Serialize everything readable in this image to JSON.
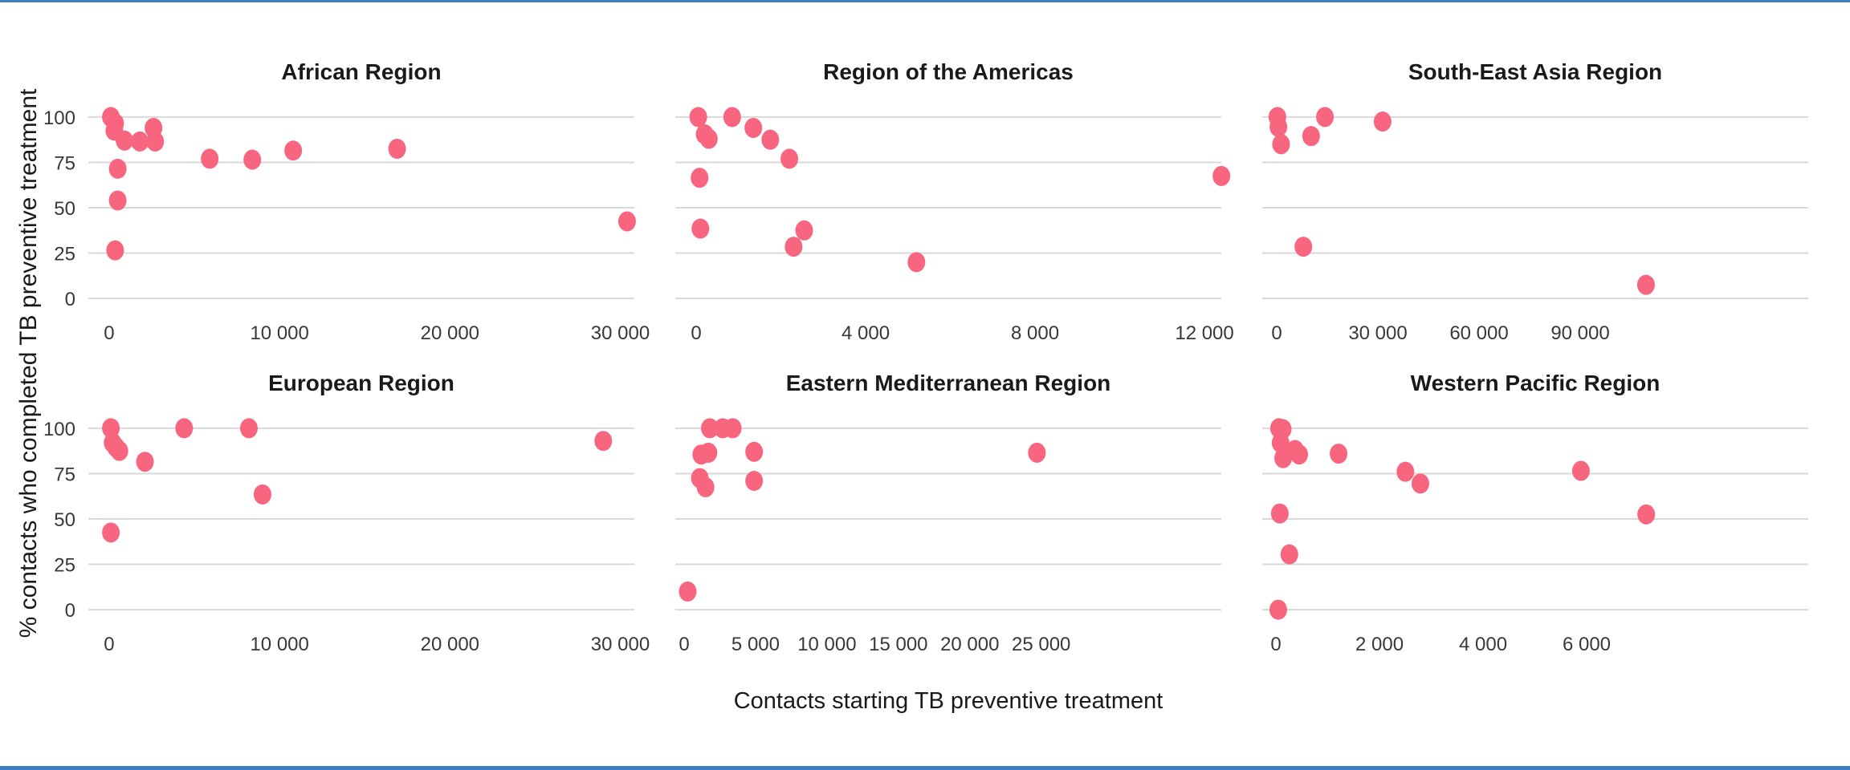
{
  "chart_data": {
    "type": "scatter",
    "faceted": true,
    "xlabel": "Contacts starting TB preventive treatment",
    "ylabel": "% contacts who completed TB preventive treatment",
    "point_color": "#f8657e",
    "gridline_color": "#d9d9d9",
    "grid": "horizontal-only",
    "legend_position": "none",
    "ylim": [
      -5.7,
      105.7
    ],
    "y_ticks": [
      {
        "v": 0,
        "label": "0"
      },
      {
        "v": 25,
        "label": "25"
      },
      {
        "v": 50,
        "label": "50"
      },
      {
        "v": 75,
        "label": "75"
      },
      {
        "v": 100,
        "label": "100"
      }
    ],
    "panels": [
      {
        "title": "African Region",
        "xlim": [
          -1225,
          30825
        ],
        "x_ticks": [
          {
            "v": 0,
            "label": "0"
          },
          {
            "v": 10000,
            "label": "10 000"
          },
          {
            "v": 20000,
            "label": "20 000"
          },
          {
            "v": 30000,
            "label": "30 000"
          }
        ],
        "points": [
          [
            100,
            100
          ],
          [
            350,
            96.5
          ],
          [
            300,
            92.5
          ],
          [
            900,
            87
          ],
          [
            1800,
            86.5
          ],
          [
            2600,
            94
          ],
          [
            2700,
            86.5
          ],
          [
            500,
            71.5
          ],
          [
            500,
            54
          ],
          [
            350,
            26.5
          ],
          [
            5900,
            77
          ],
          [
            8400,
            76.5
          ],
          [
            10800,
            81.5
          ],
          [
            16900,
            82.5
          ],
          [
            30400,
            42.5
          ]
        ]
      },
      {
        "title": "Region of the Americas",
        "xlim": [
          -493,
          12397
        ],
        "x_ticks": [
          {
            "v": 0,
            "label": "0"
          },
          {
            "v": 4000,
            "label": "4 000"
          },
          {
            "v": 8000,
            "label": "8 000"
          },
          {
            "v": 12000,
            "label": "12 000"
          }
        ],
        "points": [
          [
            50,
            100
          ],
          [
            850,
            100
          ],
          [
            1350,
            94
          ],
          [
            1750,
            87.5
          ],
          [
            200,
            90.5
          ],
          [
            300,
            88
          ],
          [
            2200,
            77
          ],
          [
            80,
            66.5
          ],
          [
            100,
            38.5
          ],
          [
            2550,
            37.5
          ],
          [
            2300,
            28.5
          ],
          [
            5200,
            20
          ],
          [
            12400,
            67.5
          ]
        ]
      },
      {
        "title": "South-East Asia Region",
        "xlim": [
          -4290,
          157610
        ],
        "x_ticks": [
          {
            "v": 0,
            "label": "0"
          },
          {
            "v": 30000,
            "label": "30 000"
          },
          {
            "v": 60000,
            "label": "60 000"
          },
          {
            "v": 90000,
            "label": "90 000"
          }
        ],
        "points": [
          [
            200,
            100
          ],
          [
            500,
            94.5
          ],
          [
            1300,
            85
          ],
          [
            10200,
            89.5
          ],
          [
            14300,
            100
          ],
          [
            31400,
            97.5
          ],
          [
            7900,
            28.5
          ],
          [
            109500,
            7.5
          ]
        ]
      },
      {
        "title": "European Region",
        "xlim": [
          -1225,
          30825
        ],
        "x_ticks": [
          {
            "v": 0,
            "label": "0"
          },
          {
            "v": 10000,
            "label": "10 000"
          },
          {
            "v": 20000,
            "label": "20 000"
          },
          {
            "v": 30000,
            "label": "30 000"
          }
        ],
        "points": [
          [
            100,
            100
          ],
          [
            200,
            92
          ],
          [
            400,
            89.5
          ],
          [
            600,
            87.5
          ],
          [
            2100,
            81.5
          ],
          [
            4400,
            100
          ],
          [
            8200,
            100
          ],
          [
            9000,
            63.5
          ],
          [
            100,
            42.5
          ],
          [
            29000,
            93
          ]
        ]
      },
      {
        "title": "Eastern Mediterranean Region",
        "xlim": [
          -620,
          37610
        ],
        "x_ticks": [
          {
            "v": 0,
            "label": "0"
          },
          {
            "v": 5000,
            "label": "5 000"
          },
          {
            "v": 10000,
            "label": "10 000"
          },
          {
            "v": 15000,
            "label": "15 000"
          },
          {
            "v": 20000,
            "label": "20 000"
          },
          {
            "v": 25000,
            "label": "25 000"
          }
        ],
        "points": [
          [
            1800,
            100
          ],
          [
            2700,
            100
          ],
          [
            3400,
            100
          ],
          [
            1200,
            85.5
          ],
          [
            1700,
            86.5
          ],
          [
            1100,
            72.5
          ],
          [
            1500,
            67.5
          ],
          [
            4900,
            87
          ],
          [
            4900,
            71
          ],
          [
            250,
            10
          ],
          [
            24700,
            86.5
          ]
        ]
      },
      {
        "title": "Western Pacific Region",
        "xlim": [
          -264,
          10279
        ],
        "x_ticks": [
          {
            "v": 0,
            "label": "0"
          },
          {
            "v": 2000,
            "label": "2 000"
          },
          {
            "v": 4000,
            "label": "4 000"
          },
          {
            "v": 6000,
            "label": "6 000"
          }
        ],
        "points": [
          [
            60,
            100
          ],
          [
            130,
            99.5
          ],
          [
            90,
            92
          ],
          [
            140,
            83.5
          ],
          [
            370,
            88
          ],
          [
            450,
            85.5
          ],
          [
            1210,
            86
          ],
          [
            2500,
            76
          ],
          [
            2790,
            69.5
          ],
          [
            75,
            53
          ],
          [
            260,
            30.5
          ],
          [
            45,
            0
          ],
          [
            5890,
            76.5
          ],
          [
            7150,
            52.5
          ]
        ]
      }
    ]
  }
}
